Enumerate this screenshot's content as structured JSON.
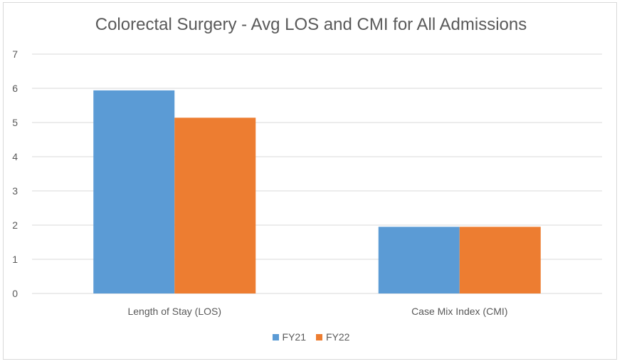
{
  "chart_data": {
    "type": "bar",
    "title": "Colorectal Surgery - Avg LOS and CMI for All Admissions",
    "xlabel": "",
    "ylabel": "",
    "categories": [
      "Length of Stay (LOS)",
      "Case Mix Index (CMI)"
    ],
    "series": [
      {
        "name": "FY21",
        "values": [
          5.94,
          1.95
        ],
        "color": "#5b9bd5"
      },
      {
        "name": "FY22",
        "values": [
          5.14,
          1.95
        ],
        "color": "#ed7d31"
      }
    ],
    "ylim": [
      0,
      7
    ],
    "yticks": [
      "0",
      "1",
      "2",
      "3",
      "4",
      "5",
      "6",
      "7"
    ],
    "grid": true,
    "legend_position": "bottom"
  }
}
